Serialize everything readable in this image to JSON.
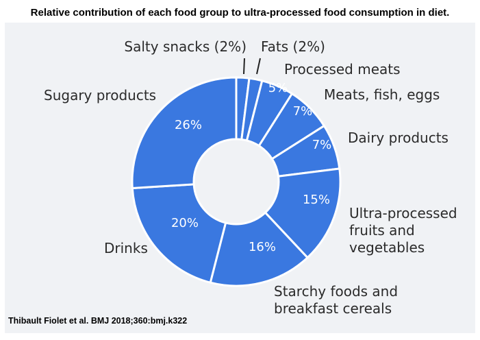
{
  "title": "Relative contribution of each food group to ultra-processed food consumption in diet.",
  "citation": "Thibault Fiolet et al. BMJ 2018;360:bmj.k322",
  "colors": {
    "slice": "#3a78e0",
    "separator": "#ffffff",
    "panel": "#f0f2f5"
  },
  "chart_data": {
    "type": "pie",
    "style": "donut",
    "categories": [
      "Salty snacks",
      "Fats",
      "Processed meats",
      "Meats, fish, eggs",
      "Dairy products",
      "Ultra-processed fruits and vegetables",
      "Starchy foods and breakfast cereals",
      "Drinks",
      "Sugary products"
    ],
    "values": [
      2,
      2,
      5,
      7,
      7,
      15,
      16,
      20,
      26
    ],
    "unit": "%",
    "slices": [
      {
        "label": [
          "Salty snacks (2%)"
        ],
        "value": 2,
        "pct_label": ""
      },
      {
        "label": [
          "Fats (2%)"
        ],
        "value": 2,
        "pct_label": ""
      },
      {
        "label": [
          "Processed meats"
        ],
        "value": 5,
        "pct_label": "5%"
      },
      {
        "label": [
          "Meats, fish, eggs"
        ],
        "value": 7,
        "pct_label": "7%"
      },
      {
        "label": [
          "Dairy products"
        ],
        "value": 7,
        "pct_label": "7%"
      },
      {
        "label": [
          "Ultra-processed",
          "fruits and",
          "vegetables"
        ],
        "value": 15,
        "pct_label": "15%"
      },
      {
        "label": [
          "Starchy foods and",
          "breakfast cereals"
        ],
        "value": 16,
        "pct_label": "16%"
      },
      {
        "label": [
          "Drinks"
        ],
        "value": 20,
        "pct_label": "20%"
      },
      {
        "label": [
          "Sugary products"
        ],
        "value": 26,
        "pct_label": "26%"
      }
    ]
  }
}
